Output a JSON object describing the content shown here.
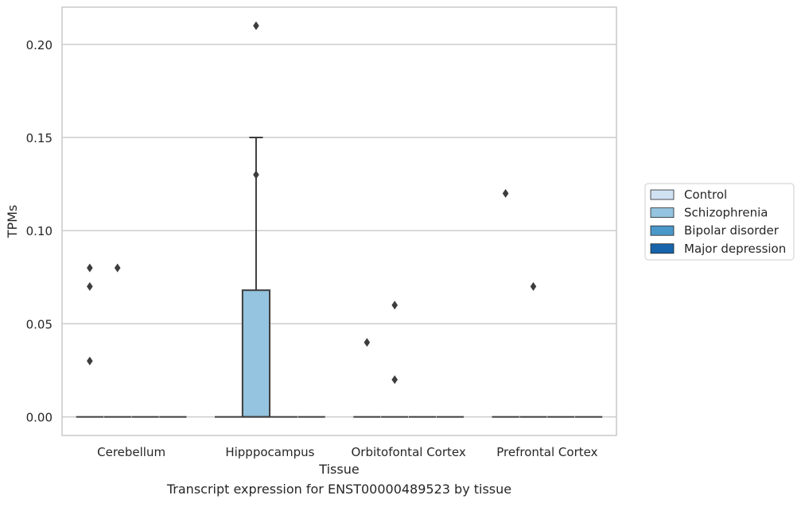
{
  "caption": "Transcript expression for ENST00000489523 by tissue",
  "chart_data": {
    "type": "box",
    "xlabel": "Tissue",
    "ylabel": "TPMs",
    "categories": [
      "Cerebellum",
      "Hipppocampus",
      "Orbitofontal Cortex",
      "Prefrontal Cortex"
    ],
    "ylim": [
      -0.01,
      0.22
    ],
    "yticks": [
      0.0,
      0.05,
      0.1,
      0.15,
      0.2
    ],
    "ytick_labels": [
      "0.00",
      "0.05",
      "0.10",
      "0.15",
      "0.20"
    ],
    "grid": "horizontal",
    "legend_position": "right",
    "series": [
      {
        "name": "Control",
        "color": "#d0e1f2",
        "boxes": [
          {
            "category": "Cerebellum",
            "q1": 0,
            "median": 0,
            "q3": 0,
            "whislo": 0,
            "whishi": 0,
            "fliers": [
              0.03,
              0.07,
              0.08
            ]
          },
          {
            "category": "Hipppocampus",
            "q1": 0,
            "median": 0,
            "q3": 0,
            "whislo": 0,
            "whishi": 0,
            "fliers": []
          },
          {
            "category": "Orbitofontal Cortex",
            "q1": 0,
            "median": 0,
            "q3": 0,
            "whislo": 0,
            "whishi": 0,
            "fliers": [
              0.04
            ]
          },
          {
            "category": "Prefrontal Cortex",
            "q1": 0,
            "median": 0,
            "q3": 0,
            "whislo": 0,
            "whishi": 0,
            "fliers": [
              0.12
            ]
          }
        ]
      },
      {
        "name": "Schizophrenia",
        "color": "#94c4df",
        "boxes": [
          {
            "category": "Cerebellum",
            "q1": 0,
            "median": 0,
            "q3": 0,
            "whislo": 0,
            "whishi": 0,
            "fliers": [
              0.08
            ]
          },
          {
            "category": "Hipppocampus",
            "q1": 0,
            "median": 0,
            "q3": 0.068,
            "whislo": 0,
            "whishi": 0.15,
            "fliers": [
              0.13,
              0.21
            ]
          },
          {
            "category": "Orbitofontal Cortex",
            "q1": 0,
            "median": 0,
            "q3": 0,
            "whislo": 0,
            "whishi": 0,
            "fliers": [
              0.02,
              0.06
            ]
          },
          {
            "category": "Prefrontal Cortex",
            "q1": 0,
            "median": 0,
            "q3": 0,
            "whislo": 0,
            "whishi": 0,
            "fliers": [
              0.07
            ]
          }
        ]
      },
      {
        "name": "Bipolar disorder",
        "color": "#4a98c9",
        "boxes": [
          {
            "category": "Cerebellum",
            "q1": 0,
            "median": 0,
            "q3": 0,
            "whislo": 0,
            "whishi": 0,
            "fliers": []
          },
          {
            "category": "Hipppocampus",
            "q1": 0,
            "median": 0,
            "q3": 0,
            "whislo": 0,
            "whishi": 0,
            "fliers": []
          },
          {
            "category": "Orbitofontal Cortex",
            "q1": 0,
            "median": 0,
            "q3": 0,
            "whislo": 0,
            "whishi": 0,
            "fliers": []
          },
          {
            "category": "Prefrontal Cortex",
            "q1": 0,
            "median": 0,
            "q3": 0,
            "whislo": 0,
            "whishi": 0,
            "fliers": []
          }
        ]
      },
      {
        "name": "Major depression",
        "color": "#1764ab",
        "boxes": [
          {
            "category": "Cerebellum",
            "q1": 0,
            "median": 0,
            "q3": 0,
            "whislo": 0,
            "whishi": 0,
            "fliers": []
          },
          {
            "category": "Hipppocampus",
            "q1": 0,
            "median": 0,
            "q3": 0,
            "whislo": 0,
            "whishi": 0,
            "fliers": []
          },
          {
            "category": "Orbitofontal Cortex",
            "q1": 0,
            "median": 0,
            "q3": 0,
            "whislo": 0,
            "whishi": 0,
            "fliers": []
          },
          {
            "category": "Prefrontal Cortex",
            "q1": 0,
            "median": 0,
            "q3": 0,
            "whislo": 0,
            "whishi": 0,
            "fliers": []
          }
        ]
      }
    ]
  }
}
